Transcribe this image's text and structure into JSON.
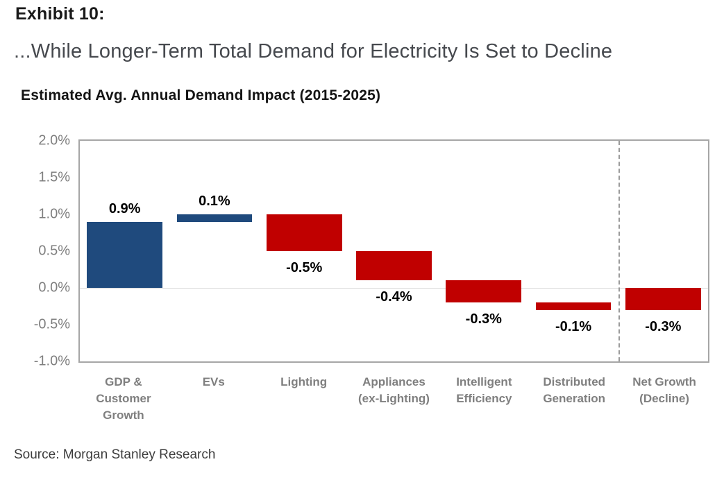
{
  "header": {
    "exhibit_label": "Exhibit 10:",
    "subtitle": "...While Longer-Term Total Demand for Electricity Is Set to Decline"
  },
  "footer": {
    "source": "Source: Morgan Stanley Research"
  },
  "colors": {
    "increase_bar": "#1F4A7D",
    "decrease_bar": "#C00000",
    "plot_border": "#A6A6A6",
    "zero_line": "#D9D9D9",
    "separator_dash": "#9B9B9B",
    "tick_text": "#7F7F7F",
    "category_text": "#7F7F7F",
    "value_label_text": "#000000"
  },
  "chart_data": {
    "type": "bar",
    "subtype": "waterfall",
    "title": "Estimated Avg. Annual Demand Impact (2015-2025)",
    "xlabel": "",
    "ylabel": "",
    "ylim": [
      -1.0,
      2.0
    ],
    "yticks": [
      2.0,
      1.5,
      1.0,
      0.5,
      0.0,
      -0.5,
      -1.0
    ],
    "ytick_labels": [
      "2.0%",
      "1.5%",
      "1.0%",
      "0.5%",
      "0.0%",
      "-0.5%",
      "-1.0%"
    ],
    "grid": "zero-line-only",
    "legend": "none",
    "categories": [
      "GDP &\nCustomer\nGrowth",
      "EVs",
      "Lighting",
      "Appliances\n(ex-Lighting)",
      "Intelligent\nEfficiency",
      "Distributed\nGeneration",
      "Net Growth\n(Decline)"
    ],
    "values": [
      0.9,
      0.1,
      -0.5,
      -0.4,
      -0.3,
      -0.1,
      -0.3
    ],
    "separator_after_index": 5,
    "segments": [
      {
        "category": "GDP & Customer Growth",
        "value": 0.9,
        "value_label": "0.9%",
        "start": 0.0,
        "end": 0.9,
        "role": "increase",
        "color": "#1F4A7D",
        "label_position": "above"
      },
      {
        "category": "EVs",
        "value": 0.1,
        "value_label": "0.1%",
        "start": 0.9,
        "end": 1.0,
        "role": "increase",
        "color": "#1F4A7D",
        "label_position": "above"
      },
      {
        "category": "Lighting",
        "value": -0.5,
        "value_label": "-0.5%",
        "start": 1.0,
        "end": 0.5,
        "role": "decrease",
        "color": "#C00000",
        "label_position": "below"
      },
      {
        "category": "Appliances (ex-Lighting)",
        "value": -0.4,
        "value_label": "-0.4%",
        "start": 0.5,
        "end": 0.1,
        "role": "decrease",
        "color": "#C00000",
        "label_position": "below"
      },
      {
        "category": "Intelligent Efficiency",
        "value": -0.3,
        "value_label": "-0.3%",
        "start": 0.1,
        "end": -0.2,
        "role": "decrease",
        "color": "#C00000",
        "label_position": "below"
      },
      {
        "category": "Distributed Generation",
        "value": -0.1,
        "value_label": "-0.1%",
        "start": -0.2,
        "end": -0.3,
        "role": "decrease",
        "color": "#C00000",
        "label_position": "below"
      },
      {
        "category": "Net Growth (Decline)",
        "value": -0.3,
        "value_label": "-0.3%",
        "start": 0.0,
        "end": -0.3,
        "role": "net-total",
        "color": "#C00000",
        "label_position": "below"
      }
    ]
  }
}
